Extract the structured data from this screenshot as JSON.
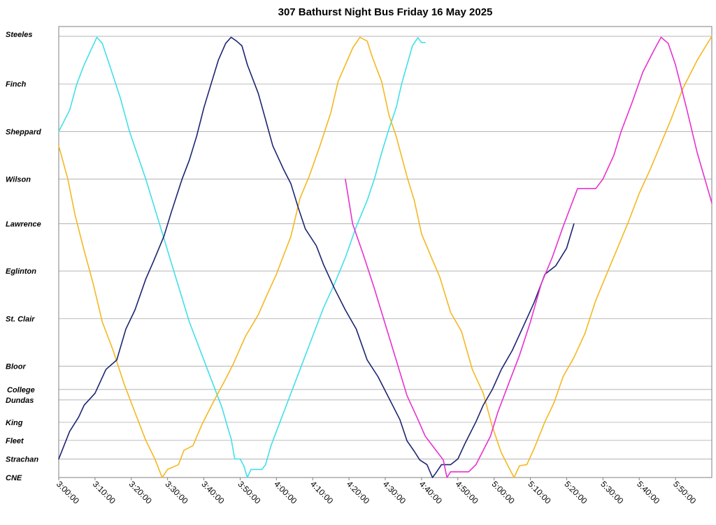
{
  "chart_data": {
    "type": "line",
    "title": "307 Bathurst Night Bus Friday 16 May 2025",
    "xlabel": "",
    "ylabel": "",
    "x_ticks": [
      "3:00:00",
      "3:10:00",
      "3:20:00",
      "3:30:00",
      "3:40:00",
      "3:50:00",
      "4:00:00",
      "4:10:00",
      "4:20:00",
      "4:30:00",
      "4:40:00",
      "4:50:00",
      "5:00:00",
      "5:10:00",
      "5:20:00",
      "5:30:00",
      "5:40:00",
      "5:50:00"
    ],
    "x_range_minutes_after_3am": [
      0,
      180
    ],
    "y_stops": [
      {
        "name": "Steeles",
        "pos": 0
      },
      {
        "name": "Finch",
        "pos": 1
      },
      {
        "name": "Sheppard",
        "pos": 2
      },
      {
        "name": "Wilson",
        "pos": 3
      },
      {
        "name": "Lawrence",
        "pos": 3.94
      },
      {
        "name": "Eglinton",
        "pos": 4.93
      },
      {
        "name": "St. Clair",
        "pos": 5.93
      },
      {
        "name": "Bloor",
        "pos": 6.93
      },
      {
        "name": "College",
        "pos": 7.42
      },
      {
        "name": "Dundas",
        "pos": 7.64
      },
      {
        "name": "King",
        "pos": 8.11
      },
      {
        "name": "Fleet",
        "pos": 8.49
      },
      {
        "name": "Strachan",
        "pos": 8.88
      },
      {
        "name": "CNE",
        "pos": 9.27
      }
    ],
    "y_range": [
      0,
      9.27
    ],
    "grid": true,
    "legend": "none",
    "series": [
      {
        "color": "#40e0e8",
        "points": [
          [
            0,
            2
          ],
          [
            3,
            1.55
          ],
          [
            5,
            1
          ],
          [
            7,
            0.6
          ],
          [
            10.5,
            0.02
          ],
          [
            12,
            0.15
          ],
          [
            14,
            0.6
          ],
          [
            17,
            1.3
          ],
          [
            19.5,
            2
          ],
          [
            24,
            3
          ],
          [
            28,
            4
          ],
          [
            32,
            5
          ],
          [
            36,
            6
          ],
          [
            41,
            7
          ],
          [
            45,
            7.8
          ],
          [
            46.5,
            8.2
          ],
          [
            47.5,
            8.45
          ],
          [
            48.5,
            8.88
          ],
          [
            50,
            8.88
          ],
          [
            51,
            9.02
          ],
          [
            52,
            9.27
          ],
          [
            53,
            9.1
          ],
          [
            56,
            9.1
          ],
          [
            57,
            9.0
          ],
          [
            58.5,
            8.6
          ],
          [
            61,
            8.1
          ],
          [
            63,
            7.7
          ],
          [
            66.5,
            7.0
          ],
          [
            70,
            6.3
          ],
          [
            73,
            5.7
          ],
          [
            76,
            5.2
          ],
          [
            79,
            4.65
          ],
          [
            82,
            4.0
          ],
          [
            85,
            3.45
          ],
          [
            87,
            3.0
          ],
          [
            89,
            2.45
          ],
          [
            91,
            1.95
          ],
          [
            93,
            1.5
          ],
          [
            94.5,
            1.0
          ],
          [
            96,
            0.6
          ],
          [
            97.5,
            0.2
          ],
          [
            99,
            0.03
          ],
          [
            100,
            0.13
          ],
          [
            101,
            0.13
          ]
        ]
      },
      {
        "color": "#f4b820",
        "points": [
          [
            0,
            2.3
          ],
          [
            2.5,
            3.0
          ],
          [
            4.5,
            3.75
          ],
          [
            7,
            4.5
          ],
          [
            9.5,
            5.2
          ],
          [
            12,
            6
          ],
          [
            15,
            6.6
          ],
          [
            18,
            7.3
          ],
          [
            21,
            7.9
          ],
          [
            24,
            8.49
          ],
          [
            26.5,
            8.88
          ],
          [
            28.5,
            9.27
          ],
          [
            30,
            9.1
          ],
          [
            33,
            9.0
          ],
          [
            34.5,
            8.7
          ],
          [
            37,
            8.6
          ],
          [
            39.5,
            8.15
          ],
          [
            42.5,
            7.7
          ],
          [
            46,
            7.2
          ],
          [
            48,
            6.9
          ],
          [
            51.5,
            6.3
          ],
          [
            55,
            5.85
          ],
          [
            57,
            5.5
          ],
          [
            60,
            5.0
          ],
          [
            62,
            4.6
          ],
          [
            64,
            4.2
          ],
          [
            66.5,
            3.4
          ],
          [
            69,
            2.95
          ],
          [
            72,
            2.3
          ],
          [
            75,
            1.6
          ],
          [
            77,
            0.95
          ],
          [
            79,
            0.6
          ],
          [
            81,
            0.25
          ],
          [
            83,
            0.02
          ],
          [
            85,
            0.1
          ],
          [
            86.5,
            0.45
          ],
          [
            89,
            0.95
          ],
          [
            91,
            1.65
          ],
          [
            93,
            2.1
          ],
          [
            96,
            2.95
          ],
          [
            98,
            3.45
          ],
          [
            100,
            4.15
          ],
          [
            103,
            4.7
          ],
          [
            105,
            5.05
          ],
          [
            108,
            5.8
          ],
          [
            111,
            6.2
          ],
          [
            114,
            7.0
          ],
          [
            117,
            7.5
          ],
          [
            119.5,
            8.2
          ],
          [
            122,
            8.75
          ],
          [
            124,
            9.05
          ],
          [
            125.5,
            9.27
          ],
          [
            127,
            9.02
          ],
          [
            129,
            9.0
          ],
          [
            131,
            8.67
          ],
          [
            134,
            8.1
          ],
          [
            136.5,
            7.7
          ],
          [
            139,
            7.15
          ],
          [
            142,
            6.75
          ],
          [
            145,
            6.25
          ],
          [
            148,
            5.55
          ],
          [
            151,
            5.0
          ],
          [
            154,
            4.45
          ],
          [
            157,
            3.9
          ],
          [
            160,
            3.3
          ],
          [
            163,
            2.8
          ],
          [
            166,
            2.25
          ],
          [
            169,
            1.7
          ],
          [
            172,
            1.1
          ],
          [
            176,
            0.5
          ],
          [
            180,
            0
          ]
        ]
      },
      {
        "color": "#1c2470",
        "points": [
          [
            0,
            8.88
          ],
          [
            3,
            8.3
          ],
          [
            5.5,
            8.0
          ],
          [
            7,
            7.75
          ],
          [
            10,
            7.5
          ],
          [
            13,
            7.0
          ],
          [
            16,
            6.8
          ],
          [
            18.5,
            6.15
          ],
          [
            21,
            5.75
          ],
          [
            24,
            5.1
          ],
          [
            26,
            4.75
          ],
          [
            29,
            4.2
          ],
          [
            31,
            3.7
          ],
          [
            34,
            3.0
          ],
          [
            36,
            2.6
          ],
          [
            38,
            2.1
          ],
          [
            40,
            1.5
          ],
          [
            42,
            1.0
          ],
          [
            44,
            0.5
          ],
          [
            46,
            0.15
          ],
          [
            47.5,
            0.02
          ],
          [
            49,
            0.1
          ],
          [
            50.5,
            0.2
          ],
          [
            52,
            0.6
          ],
          [
            55,
            1.2
          ],
          [
            57,
            1.75
          ],
          [
            59,
            2.3
          ],
          [
            62,
            2.8
          ],
          [
            64,
            3.1
          ],
          [
            66,
            3.6
          ],
          [
            68,
            4.05
          ],
          [
            71,
            4.4
          ],
          [
            73,
            4.8
          ],
          [
            76,
            5.3
          ],
          [
            79,
            5.75
          ],
          [
            82,
            6.15
          ],
          [
            85,
            6.8
          ],
          [
            88,
            7.15
          ],
          [
            91,
            7.6
          ],
          [
            94,
            8.05
          ],
          [
            96,
            8.5
          ],
          [
            98,
            8.72
          ],
          [
            99.5,
            8.9
          ],
          [
            101.5,
            9.0
          ],
          [
            103,
            9.27
          ],
          [
            104,
            9.17
          ],
          [
            105.5,
            9.0
          ],
          [
            107,
            9.0
          ],
          [
            108,
            9.0
          ],
          [
            110,
            8.88
          ],
          [
            112,
            8.55
          ],
          [
            115,
            8.1
          ],
          [
            117,
            7.75
          ],
          [
            119.5,
            7.42
          ],
          [
            122,
            7.0
          ],
          [
            125,
            6.6
          ],
          [
            128,
            6.1
          ],
          [
            131,
            5.6
          ],
          [
            134,
            5.0
          ],
          [
            137,
            4.82
          ],
          [
            140,
            4.45
          ],
          [
            142,
            3.94
          ]
        ]
      },
      {
        "color": "#e830d0",
        "points": [
          [
            79,
            3.0
          ],
          [
            81,
            3.94
          ],
          [
            84,
            4.6
          ],
          [
            87,
            5.3
          ],
          [
            90,
            6.05
          ],
          [
            93,
            6.8
          ],
          [
            96,
            7.55
          ],
          [
            99,
            8.05
          ],
          [
            101,
            8.4
          ],
          [
            104,
            8.7
          ],
          [
            106,
            8.9
          ],
          [
            107,
            9.27
          ],
          [
            108,
            9.15
          ],
          [
            110,
            9.15
          ],
          [
            113,
            9.15
          ],
          [
            115,
            9.0
          ],
          [
            117,
            8.7
          ],
          [
            119,
            8.4
          ],
          [
            121,
            7.9
          ],
          [
            124,
            7.3
          ],
          [
            127,
            6.7
          ],
          [
            130,
            6.0
          ],
          [
            133,
            5.2
          ],
          [
            136,
            4.65
          ],
          [
            139,
            4.0
          ],
          [
            141,
            3.6
          ],
          [
            143,
            3.2
          ],
          [
            146,
            3.2
          ],
          [
            148,
            3.2
          ],
          [
            150,
            3.0
          ],
          [
            153,
            2.5
          ],
          [
            155,
            2.0
          ],
          [
            158,
            1.4
          ],
          [
            161,
            0.75
          ],
          [
            164,
            0.3
          ],
          [
            166,
            0.02
          ],
          [
            168,
            0.15
          ],
          [
            170,
            0.6
          ],
          [
            173,
            1.5
          ],
          [
            176,
            2.45
          ],
          [
            180,
            3.5
          ]
        ]
      }
    ]
  }
}
